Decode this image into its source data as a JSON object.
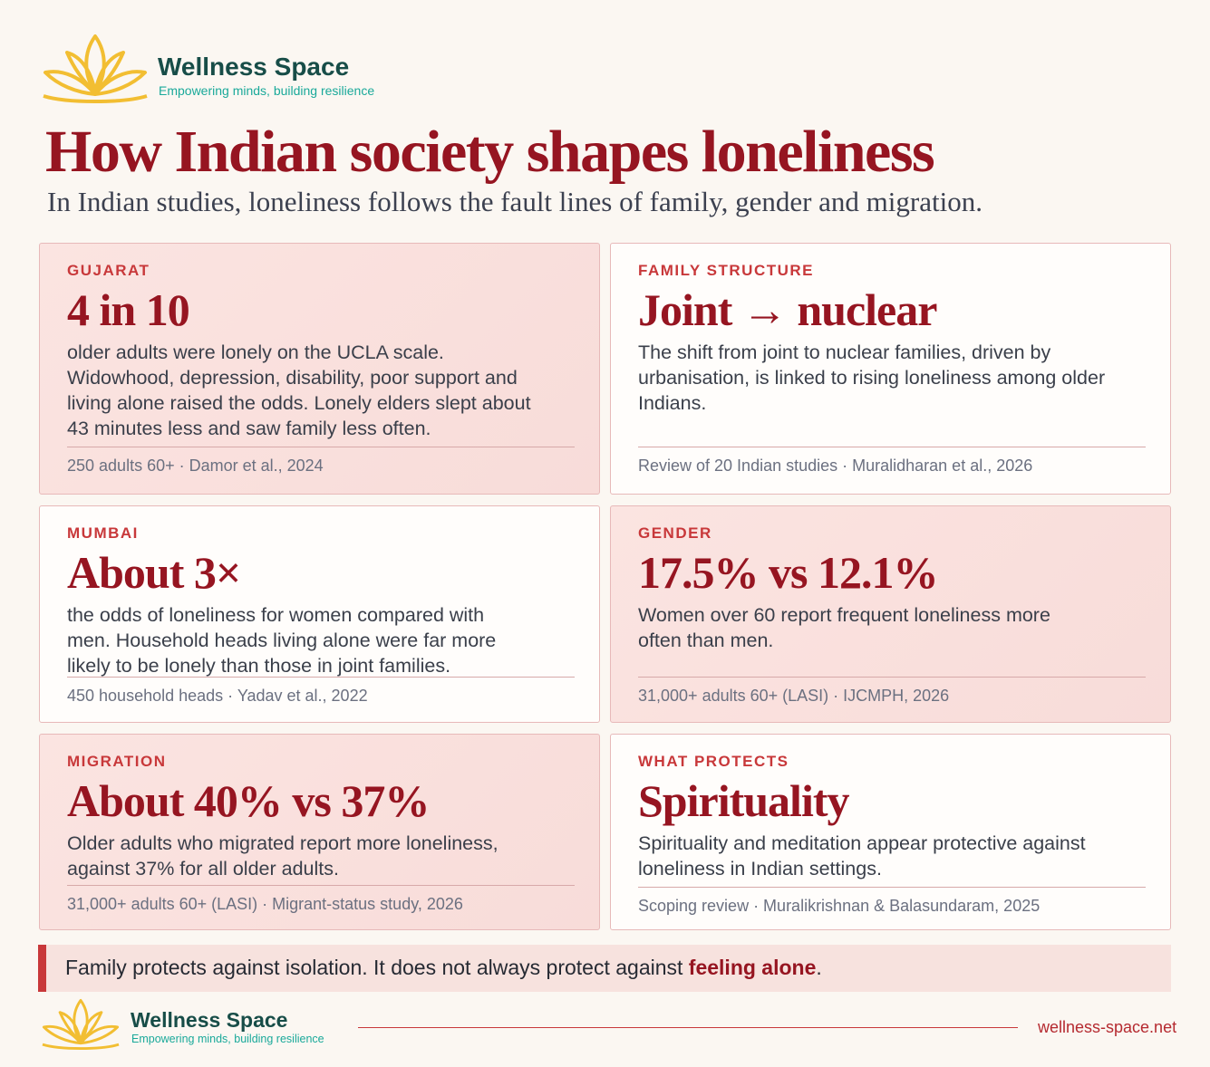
{
  "header": {
    "brand": "Wellness Space",
    "tagline": "Empowering minds, building resilience"
  },
  "title": "How Indian society shapes loneliness",
  "subtitle": "In Indian studies, loneliness follows the fault lines of family, gender and migration.",
  "cards": [
    {
      "label": "GUJARAT",
      "headline": "4 in 10",
      "body": "older adults were lonely on the UCLA scale. Widowhood, depression, disability, poor support and living alone raised the odds. Lonely elders slept about 43 minutes less and saw family less often.",
      "source": "250 adults 60+ · Damor et al., 2024"
    },
    {
      "label": "FAMILY STRUCTURE",
      "headline": "Joint → nuclear",
      "body": "The shift from joint to nuclear families, driven by urbanisation, is linked to rising loneliness among older Indians.",
      "source": "Review of 20 Indian studies · Muralidharan et al., 2026"
    },
    {
      "label": "MUMBAI",
      "headline": "About 3×",
      "body": "the odds of loneliness for women compared with men. Household heads living alone were far more likely to be lonely than those in joint families.",
      "source": "450 household heads · Yadav et al., 2022"
    },
    {
      "label": "GENDER",
      "headline": "17.5% vs 12.1%",
      "body": "Women over 60 report frequent loneliness more often than men.",
      "source": "31,000+ adults 60+ (LASI) · IJCMPH, 2026"
    },
    {
      "label": "MIGRATION",
      "headline": "About 40% vs 37%",
      "body": "Older adults who migrated report more loneliness, against 37% for all older adults.",
      "source": "31,000+ adults 60+ (LASI) · Migrant-status study, 2026"
    },
    {
      "label": "WHAT PROTECTS",
      "headline": "Spirituality",
      "body": "Spirituality and meditation appear protective against loneliness in Indian settings.",
      "source": "Scoping review · Muralikrishnan & Balasundaram, 2025"
    }
  ],
  "callout": {
    "text": "Family protects against isolation. It does not always protect against ",
    "emphasis": "feeling alone",
    "end": "."
  },
  "footer": {
    "brand": "Wellness Space",
    "tagline": "Empowering minds, building resilience",
    "url": "wellness-space.net"
  }
}
